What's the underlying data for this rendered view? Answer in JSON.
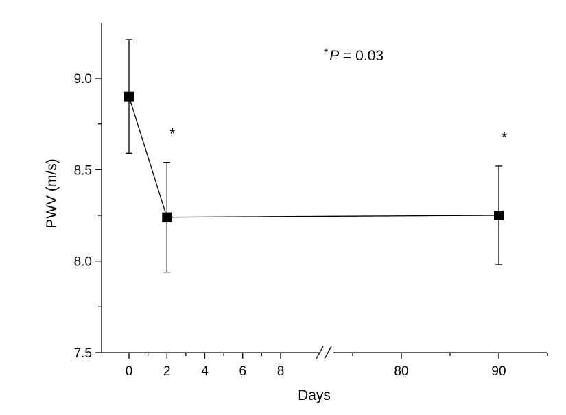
{
  "chart_data": {
    "type": "scatter",
    "title": "",
    "xlabel": "Days",
    "ylabel": "PWV (m/s)",
    "ylim": [
      7.5,
      9.25
    ],
    "x_axis": {
      "broken": true,
      "segments": [
        {
          "range": [
            -1.5,
            9.6
          ],
          "ticks": [
            0,
            2,
            4,
            6,
            8
          ],
          "tick_labels": [
            "0",
            "2",
            "4",
            "6",
            "8"
          ]
        },
        {
          "range": [
            72.5,
            95.6
          ],
          "ticks": [
            80,
            90
          ],
          "tick_labels": [
            "80",
            "90"
          ]
        }
      ],
      "minor_ticks": [
        1,
        3,
        5,
        7,
        75,
        85,
        95
      ]
    },
    "y_axis": {
      "ticks": [
        7.5,
        8.0,
        8.5,
        9.0
      ],
      "tick_labels": [
        "7.5",
        "8.0",
        "8.5",
        "9.0"
      ],
      "minor_ticks": [
        7.75,
        8.25,
        8.75
      ]
    },
    "series": [
      {
        "marker": "square",
        "color": "#000000",
        "connected": true,
        "x": [
          0,
          2,
          90
        ],
        "y": [
          8.9,
          8.24,
          8.25
        ],
        "error_low": [
          8.59,
          7.94,
          7.98
        ],
        "error_high": [
          9.21,
          8.54,
          8.52
        ],
        "significance": [
          "",
          "*",
          "*"
        ]
      }
    ],
    "annotations": [
      {
        "star": "*",
        "italic_text": "P",
        "text": " = 0.03"
      }
    ],
    "grid": false,
    "legend": "none"
  }
}
